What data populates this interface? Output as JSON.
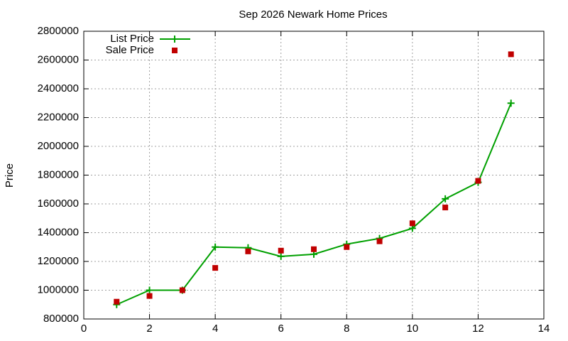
{
  "chart_data": {
    "type": "line",
    "title": "Sep 2026 Newark Home Prices",
    "y_label": "Price",
    "x": [
      1,
      2,
      3,
      4,
      5,
      6,
      7,
      8,
      9,
      10,
      11,
      12,
      13
    ],
    "series": [
      {
        "name": "List Price",
        "color": "#00a000",
        "style": "linespoints",
        "marker": "plus",
        "values": [
          900000,
          1000000,
          1000000,
          1300000,
          1295000,
          1235000,
          1250000,
          1320000,
          1360000,
          1430000,
          1635000,
          1750000,
          2300000
        ]
      },
      {
        "name": "Sale Price",
        "color": "#c00000",
        "style": "points",
        "marker": "square",
        "values": [
          920000,
          960000,
          1000000,
          1155000,
          1270000,
          1275000,
          1285000,
          1300000,
          1340000,
          1465000,
          1575000,
          1760000,
          2640000
        ]
      }
    ],
    "xlim": [
      0,
      14
    ],
    "xticks": [
      0,
      2,
      4,
      6,
      8,
      10,
      12,
      14
    ],
    "ylim": [
      800000,
      2800000
    ],
    "yticks": [
      800000,
      1000000,
      1200000,
      1400000,
      1600000,
      1800000,
      2000000,
      2200000,
      2400000,
      2600000,
      2800000
    ],
    "grid": true,
    "legend": "top-left"
  }
}
